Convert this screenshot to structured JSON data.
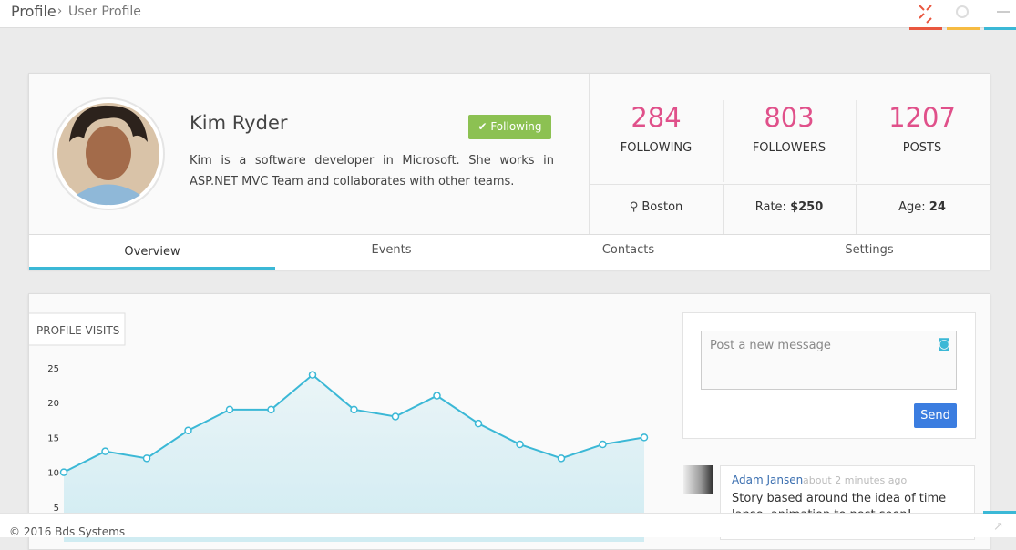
{
  "header": {
    "title": "Profile",
    "subtitle": "User Profile"
  },
  "profile": {
    "name": "Kim Ryder",
    "follow_button": "Following",
    "bio": "Kim is a software developer in Microsoft. She works in ASP.NET MVC Team and collaborates with other teams."
  },
  "stats": [
    {
      "value": 284,
      "label": "FOLLOWING"
    },
    {
      "value": 803,
      "label": "FOLLOWERS"
    },
    {
      "value": 1207,
      "label": "POSTS"
    }
  ],
  "info": {
    "location": "Boston",
    "rate_label": "Rate:",
    "rate": "$250",
    "age_label": "Age:",
    "age": 24
  },
  "tabs": [
    "Overview",
    "Events",
    "Contacts",
    "Settings"
  ],
  "chart_data": {
    "type": "area",
    "title": "PROFILE VISITS",
    "color": "#3bb8d6",
    "categories": [
      null,
      null,
      null,
      null,
      null,
      null,
      null,
      null,
      null,
      null,
      null,
      null,
      null,
      null,
      null
    ],
    "values": [
      10,
      13,
      12,
      16,
      19,
      19,
      24,
      19,
      18,
      21,
      17,
      14,
      12,
      14,
      15
    ],
    "ylim": [
      0,
      25
    ],
    "yticks": [
      5,
      10,
      15,
      20,
      25
    ]
  },
  "post": {
    "placeholder": "Post a new message",
    "send": "Send"
  },
  "comment": {
    "author": "Adam Jansen",
    "time": "about 2 minutes ago",
    "text": "Story based around the idea of time lapse, animation to post soon!"
  },
  "footer": {
    "copyright": "© 2016 Bds Systems"
  }
}
